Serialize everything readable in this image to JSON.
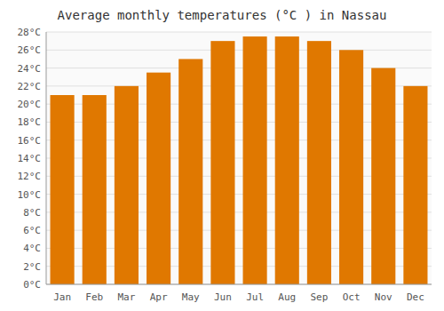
{
  "chart_data": {
    "type": "bar",
    "title": "Average monthly temperatures (°C ) in Nassau",
    "categories": [
      "Jan",
      "Feb",
      "Mar",
      "Apr",
      "May",
      "Jun",
      "Jul",
      "Aug",
      "Sep",
      "Oct",
      "Nov",
      "Dec"
    ],
    "values": [
      21,
      21,
      22,
      23.5,
      25,
      27,
      27.5,
      27.5,
      27,
      26,
      24,
      22
    ],
    "color": "#E07800",
    "ylim": [
      0,
      28
    ],
    "yticks": [
      {
        "value": 0,
        "label": "0°C"
      },
      {
        "value": 2,
        "label": "2°C"
      },
      {
        "value": 4,
        "label": "4°C"
      },
      {
        "value": 6,
        "label": "6°C"
      },
      {
        "value": 8,
        "label": "8°C"
      },
      {
        "value": 10,
        "label": "10°C"
      },
      {
        "value": 12,
        "label": "12°C"
      },
      {
        "value": 14,
        "label": "14°C"
      },
      {
        "value": 16,
        "label": "16°C"
      },
      {
        "value": 18,
        "label": "18°C"
      },
      {
        "value": 20,
        "label": "20°C"
      },
      {
        "value": 22,
        "label": "22°C"
      },
      {
        "value": 24,
        "label": "24°C"
      },
      {
        "value": 26,
        "label": "26°C"
      },
      {
        "value": 28,
        "label": "28°C"
      }
    ],
    "grid": true
  }
}
